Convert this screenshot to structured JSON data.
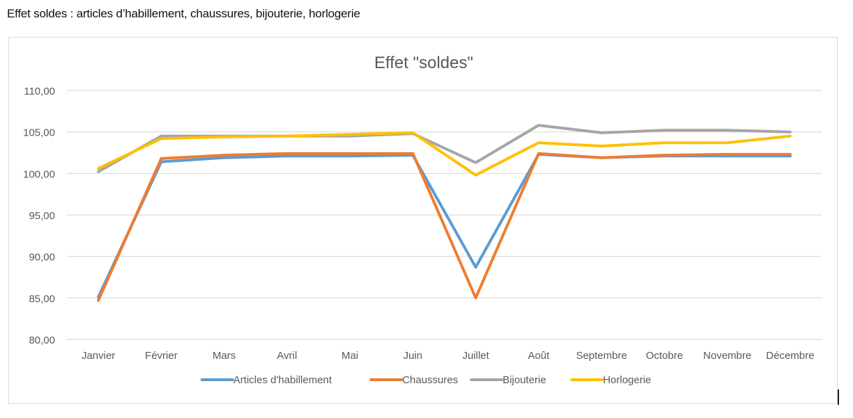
{
  "document": {
    "heading": "Effet soldes : articles d’habillement, chaussures, bijouterie, horlogerie"
  },
  "chart_data": {
    "type": "line",
    "title": "Effet \"soldes\"",
    "xlabel": "",
    "ylabel": "",
    "ylim": [
      80,
      110
    ],
    "yticks": [
      "80,00",
      "85,00",
      "90,00",
      "95,00",
      "100,00",
      "105,00",
      "110,00"
    ],
    "ytick_values": [
      80,
      85,
      90,
      95,
      100,
      105,
      110
    ],
    "grid": true,
    "legend_position": "bottom",
    "categories": [
      "Janvier",
      "Février",
      "Mars",
      "Avril",
      "Mai",
      "Juin",
      "Juillet",
      "Août",
      "Septembre",
      "Octobre",
      "Novembre",
      "Décembre"
    ],
    "series": [
      {
        "name": "Articles d'habillement",
        "color": "#5b9bd5",
        "values": [
          85.1,
          101.4,
          101.9,
          102.1,
          102.1,
          102.2,
          88.7,
          102.3,
          101.9,
          102.1,
          102.1,
          102.1
        ]
      },
      {
        "name": "Chaussures",
        "color": "#ed7d31",
        "values": [
          84.7,
          101.8,
          102.2,
          102.4,
          102.4,
          102.4,
          85.0,
          102.4,
          101.9,
          102.2,
          102.3,
          102.3
        ]
      },
      {
        "name": "Bijouterie",
        "color": "#a5a5a5",
        "values": [
          100.2,
          104.5,
          104.5,
          104.5,
          104.5,
          104.8,
          101.3,
          105.8,
          104.9,
          105.2,
          105.2,
          105.0
        ]
      },
      {
        "name": "Horlogerie",
        "color": "#ffc000",
        "values": [
          100.6,
          104.2,
          104.4,
          104.5,
          104.7,
          104.9,
          99.8,
          103.7,
          103.3,
          103.7,
          103.7,
          104.5
        ]
      }
    ]
  },
  "colors": {
    "grid": "#d9d9d9",
    "axis_text": "#595959",
    "title_text": "#595959",
    "frame_border": "#d9d9d9"
  }
}
